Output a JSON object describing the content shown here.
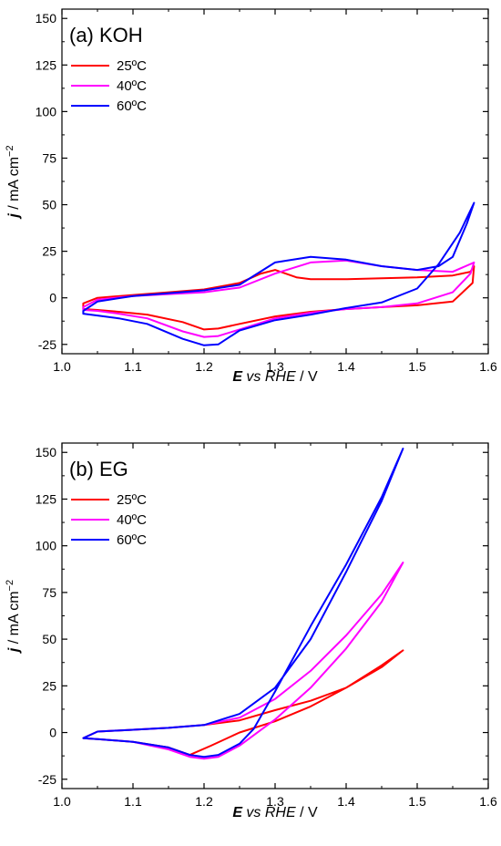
{
  "chart_data": [
    {
      "type": "line",
      "title": "(a) KOH",
      "xlabel": {
        "main": "E",
        "italic": "vs RHE",
        "unit": " / V"
      },
      "ylabel": {
        "symbol": "j",
        "unit": " / mA cm",
        "exp": "−2"
      },
      "xlim": [
        1.0,
        1.6
      ],
      "ylim": [
        -30,
        155
      ],
      "x_ticks": [
        1.0,
        1.1,
        1.2,
        1.3,
        1.4,
        1.5,
        1.6
      ],
      "x_tick_labels": [
        "1.0",
        "1.1",
        "1.2",
        "1.3",
        "1.4",
        "1.5",
        "1.6"
      ],
      "y_ticks": [
        -25,
        0,
        25,
        50,
        75,
        100,
        125,
        150
      ],
      "y_tick_labels": [
        "-25",
        "0",
        "25",
        "50",
        "75",
        "100",
        "125",
        "150"
      ],
      "legend_position": "top-left",
      "grid": false,
      "series": [
        {
          "name": "25ºC",
          "color": "#ff0000",
          "x": [
            1.03,
            1.05,
            1.1,
            1.15,
            1.2,
            1.25,
            1.28,
            1.3,
            1.33,
            1.35,
            1.4,
            1.45,
            1.5,
            1.55,
            1.575,
            1.58,
            1.578,
            1.55,
            1.5,
            1.45,
            1.4,
            1.35,
            1.3,
            1.25,
            1.22,
            1.2,
            1.17,
            1.12,
            1.08,
            1.05,
            1.03
          ],
          "y": [
            -3,
            0,
            1.5,
            3,
            4.5,
            8,
            13,
            15,
            11,
            10,
            10,
            10.5,
            11,
            12,
            14,
            17,
            8,
            -2,
            -4,
            -5,
            -6,
            -7.5,
            -10,
            -14,
            -16.5,
            -17,
            -13,
            -9,
            -7.5,
            -6.5,
            -6
          ]
        },
        {
          "name": "40ºC",
          "color": "#ff00ff",
          "x": [
            1.03,
            1.05,
            1.1,
            1.15,
            1.2,
            1.25,
            1.3,
            1.35,
            1.4,
            1.45,
            1.5,
            1.55,
            1.58,
            1.575,
            1.55,
            1.5,
            1.45,
            1.4,
            1.35,
            1.3,
            1.25,
            1.22,
            1.2,
            1.17,
            1.12,
            1.08,
            1.05,
            1.03
          ],
          "y": [
            -5,
            -1,
            1,
            2,
            3,
            5.5,
            13,
            19,
            20,
            17,
            15,
            14,
            19,
            13,
            3,
            -3,
            -5,
            -6,
            -8,
            -11,
            -17,
            -20.5,
            -21,
            -18,
            -11,
            -8.5,
            -7,
            -6.5
          ]
        },
        {
          "name": "60ºC",
          "color": "#0000ff",
          "x": [
            1.03,
            1.05,
            1.1,
            1.15,
            1.2,
            1.25,
            1.3,
            1.35,
            1.4,
            1.45,
            1.5,
            1.53,
            1.55,
            1.57,
            1.58,
            1.56,
            1.53,
            1.5,
            1.45,
            1.4,
            1.35,
            1.3,
            1.25,
            1.22,
            1.2,
            1.17,
            1.12,
            1.08,
            1.05,
            1.03
          ],
          "y": [
            -7,
            -2,
            1,
            2.5,
            4,
            7,
            19,
            22,
            20.5,
            17,
            15,
            17,
            22,
            40,
            51,
            35,
            18,
            5,
            -2.5,
            -5.5,
            -9,
            -12,
            -17.5,
            -25,
            -25.5,
            -22,
            -14,
            -11,
            -9.5,
            -8.5
          ]
        }
      ]
    },
    {
      "type": "line",
      "title": "(b) EG",
      "xlabel": {
        "main": "E",
        "italic": "vs RHE",
        "unit": " / V"
      },
      "ylabel": {
        "symbol": "j",
        "unit": " / mA cm",
        "exp": "−2"
      },
      "xlim": [
        1.0,
        1.6
      ],
      "ylim": [
        -30,
        155
      ],
      "x_ticks": [
        1.0,
        1.1,
        1.2,
        1.3,
        1.4,
        1.5,
        1.6
      ],
      "x_tick_labels": [
        "1.0",
        "1.1",
        "1.2",
        "1.3",
        "1.4",
        "1.5",
        "1.6"
      ],
      "y_ticks": [
        -25,
        0,
        25,
        50,
        75,
        100,
        125,
        150
      ],
      "y_tick_labels": [
        "-25",
        "0",
        "25",
        "50",
        "75",
        "100",
        "125",
        "150"
      ],
      "legend_position": "top-left",
      "grid": false,
      "series": [
        {
          "name": "25ºC",
          "color": "#ff0000",
          "x": [
            1.03,
            1.05,
            1.1,
            1.15,
            1.2,
            1.25,
            1.3,
            1.35,
            1.4,
            1.45,
            1.48,
            1.45,
            1.4,
            1.35,
            1.3,
            1.25,
            1.21,
            1.18,
            1.15,
            1.1,
            1.05,
            1.03
          ],
          "y": [
            -3,
            0.5,
            1.5,
            2.5,
            4,
            6.5,
            12,
            17,
            24,
            35,
            44,
            36,
            24,
            14,
            6,
            0,
            -7,
            -12,
            -8,
            -5,
            -3.5,
            -3
          ]
        },
        {
          "name": "40ºC",
          "color": "#ff00ff",
          "x": [
            1.03,
            1.05,
            1.1,
            1.15,
            1.2,
            1.25,
            1.3,
            1.35,
            1.4,
            1.45,
            1.48,
            1.45,
            1.4,
            1.35,
            1.3,
            1.25,
            1.22,
            1.2,
            1.18,
            1.15,
            1.1,
            1.05,
            1.03
          ],
          "y": [
            -3,
            0.5,
            1.5,
            2.5,
            4,
            8,
            18,
            33,
            52,
            74,
            91,
            70,
            45,
            24,
            7,
            -7,
            -13,
            -14,
            -13,
            -9,
            -5,
            -3.5,
            -3
          ]
        },
        {
          "name": "60ºC",
          "color": "#0000ff",
          "x": [
            1.03,
            1.05,
            1.1,
            1.15,
            1.2,
            1.25,
            1.3,
            1.35,
            1.4,
            1.45,
            1.48,
            1.45,
            1.4,
            1.35,
            1.3,
            1.27,
            1.25,
            1.22,
            1.2,
            1.18,
            1.15,
            1.1,
            1.05,
            1.03
          ],
          "y": [
            -3,
            0.5,
            1.5,
            2.5,
            4,
            10,
            24,
            50,
            86,
            124,
            152,
            126,
            90,
            57,
            22,
            2,
            -6,
            -12,
            -13,
            -12,
            -8,
            -5,
            -3.5,
            -3
          ]
        }
      ]
    }
  ]
}
